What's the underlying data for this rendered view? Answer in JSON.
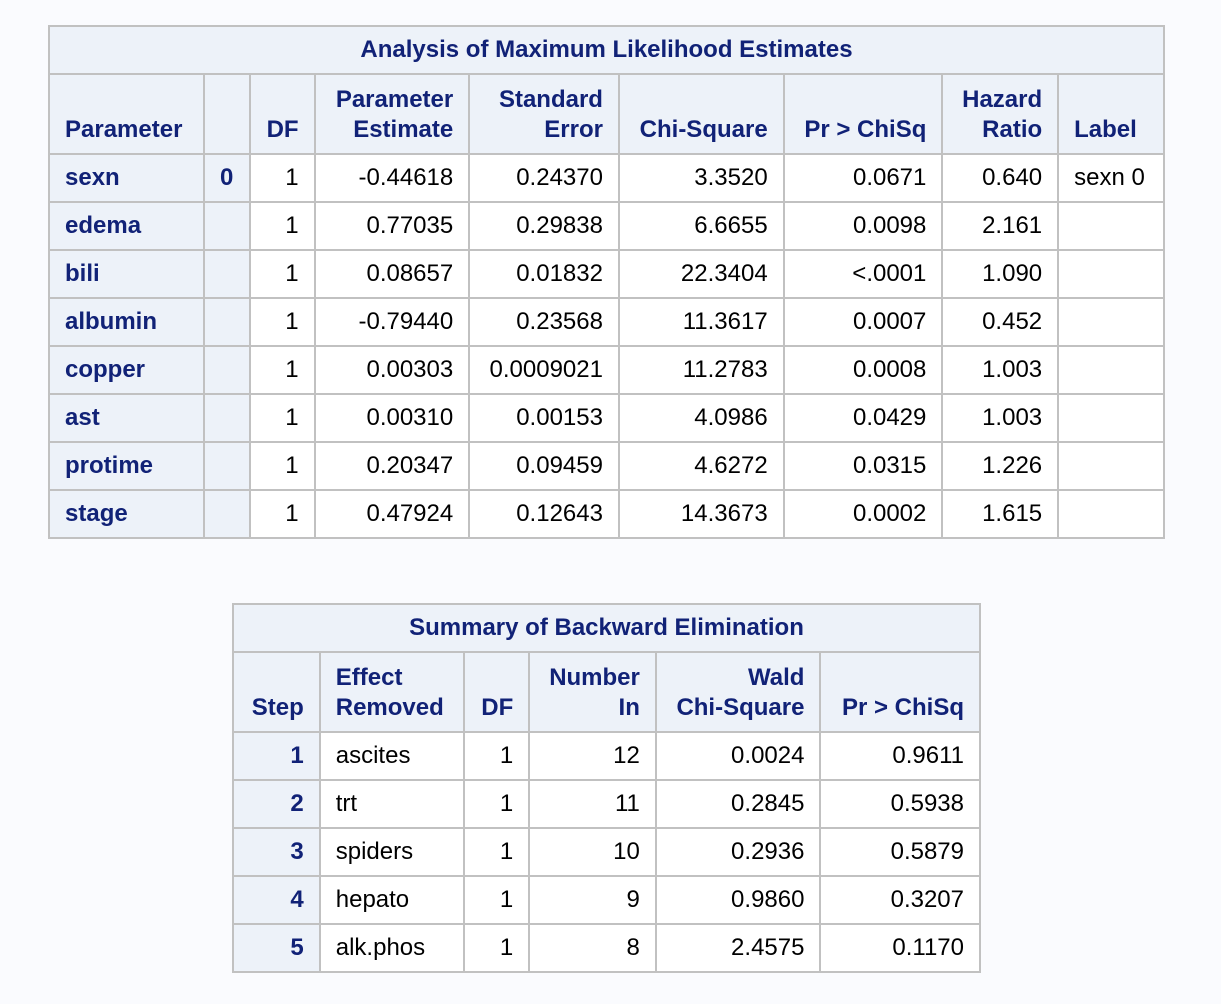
{
  "mle": {
    "caption": "Analysis of Maximum Likelihood Estimates",
    "headers": {
      "parameter": "Parameter",
      "level": "",
      "df": "DF",
      "estimate_1": "Parameter",
      "estimate_2": "Estimate",
      "stderr_1": "Standard",
      "stderr_2": "Error",
      "chisq": "Chi-Square",
      "p": "Pr > ChiSq",
      "hr_1": "Hazard",
      "hr_2": "Ratio",
      "label": "Label"
    },
    "rows": [
      {
        "parameter": "sexn",
        "level": "0",
        "df": "1",
        "estimate": "-0.44618",
        "stderr": "0.24370",
        "chisq": "3.3520",
        "p": "0.0671",
        "hr": "0.640",
        "label": "sexn 0"
      },
      {
        "parameter": "edema",
        "level": "",
        "df": "1",
        "estimate": "0.77035",
        "stderr": "0.29838",
        "chisq": "6.6655",
        "p": "0.0098",
        "hr": "2.161",
        "label": ""
      },
      {
        "parameter": "bili",
        "level": "",
        "df": "1",
        "estimate": "0.08657",
        "stderr": "0.01832",
        "chisq": "22.3404",
        "p": "<.0001",
        "hr": "1.090",
        "label": ""
      },
      {
        "parameter": "albumin",
        "level": "",
        "df": "1",
        "estimate": "-0.79440",
        "stderr": "0.23568",
        "chisq": "11.3617",
        "p": "0.0007",
        "hr": "0.452",
        "label": ""
      },
      {
        "parameter": "copper",
        "level": "",
        "df": "1",
        "estimate": "0.00303",
        "stderr": "0.0009021",
        "chisq": "11.2783",
        "p": "0.0008",
        "hr": "1.003",
        "label": ""
      },
      {
        "parameter": "ast",
        "level": "",
        "df": "1",
        "estimate": "0.00310",
        "stderr": "0.00153",
        "chisq": "4.0986",
        "p": "0.0429",
        "hr": "1.003",
        "label": ""
      },
      {
        "parameter": "protime",
        "level": "",
        "df": "1",
        "estimate": "0.20347",
        "stderr": "0.09459",
        "chisq": "4.6272",
        "p": "0.0315",
        "hr": "1.226",
        "label": ""
      },
      {
        "parameter": "stage",
        "level": "",
        "df": "1",
        "estimate": "0.47924",
        "stderr": "0.12643",
        "chisq": "14.3673",
        "p": "0.0002",
        "hr": "1.615",
        "label": ""
      }
    ]
  },
  "backward": {
    "caption": "Summary of Backward Elimination",
    "headers": {
      "step": "Step",
      "effect_1": "Effect",
      "effect_2": "Removed",
      "df": "DF",
      "number_1": "Number",
      "number_2": "In",
      "wald_1": "Wald",
      "wald_2": "Chi-Square",
      "p": "Pr > ChiSq"
    },
    "rows": [
      {
        "step": "1",
        "effect": "ascites",
        "df": "1",
        "number_in": "12",
        "wald": "0.0024",
        "p": "0.9611"
      },
      {
        "step": "2",
        "effect": "trt",
        "df": "1",
        "number_in": "11",
        "wald": "0.2845",
        "p": "0.5938"
      },
      {
        "step": "3",
        "effect": "spiders",
        "df": "1",
        "number_in": "10",
        "wald": "0.2936",
        "p": "0.5879"
      },
      {
        "step": "4",
        "effect": "hepato",
        "df": "1",
        "number_in": "9",
        "wald": "0.9860",
        "p": "0.3207"
      },
      {
        "step": "5",
        "effect": "alk.phos",
        "df": "1",
        "number_in": "8",
        "wald": "2.4575",
        "p": "0.1170"
      }
    ]
  },
  "colors": {
    "header_bg": "#edf2f9",
    "header_text": "#112277",
    "border": "#c1c1c1",
    "page_bg": "#fafbfe"
  }
}
